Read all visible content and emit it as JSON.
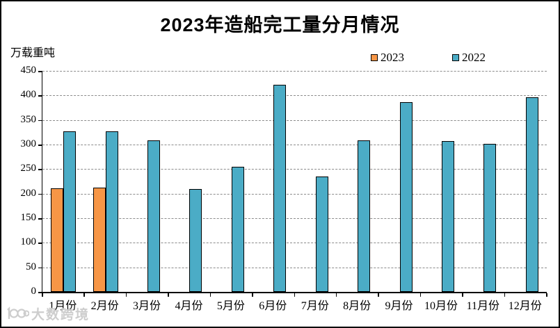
{
  "title": "2023年造船完工量分月情况",
  "y_axis_label": "万载重吨",
  "watermark": {
    "text": "大数跨境",
    "icon": "10100-logo",
    "color": "#cbcbcb"
  },
  "colors": {
    "series_2023": "#F79646",
    "series_2022": "#4BACC6",
    "bar_border": "#000000",
    "gridline": "#8c8c8c"
  },
  "chart_data": {
    "type": "bar",
    "title": "2023年造船完工量分月情况",
    "xlabel": "",
    "ylabel": "万载重吨",
    "ylim": [
      0,
      450
    ],
    "ytick_interval": 50,
    "grid": "horizontal-dashed",
    "legend_position": "top",
    "categories": [
      "1月份",
      "2月份",
      "3月份",
      "4月份",
      "5月份",
      "6月份",
      "7月份",
      "8月份",
      "9月份",
      "10月份",
      "11月份",
      "12月份"
    ],
    "series": [
      {
        "name": "2023",
        "color": "#F79646",
        "values": [
          211,
          212,
          null,
          null,
          null,
          null,
          null,
          null,
          null,
          null,
          null,
          null
        ]
      },
      {
        "name": "2022",
        "color": "#4BACC6",
        "values": [
          327,
          327,
          309,
          210,
          255,
          422,
          235,
          308,
          386,
          307,
          302,
          396
        ]
      }
    ]
  }
}
